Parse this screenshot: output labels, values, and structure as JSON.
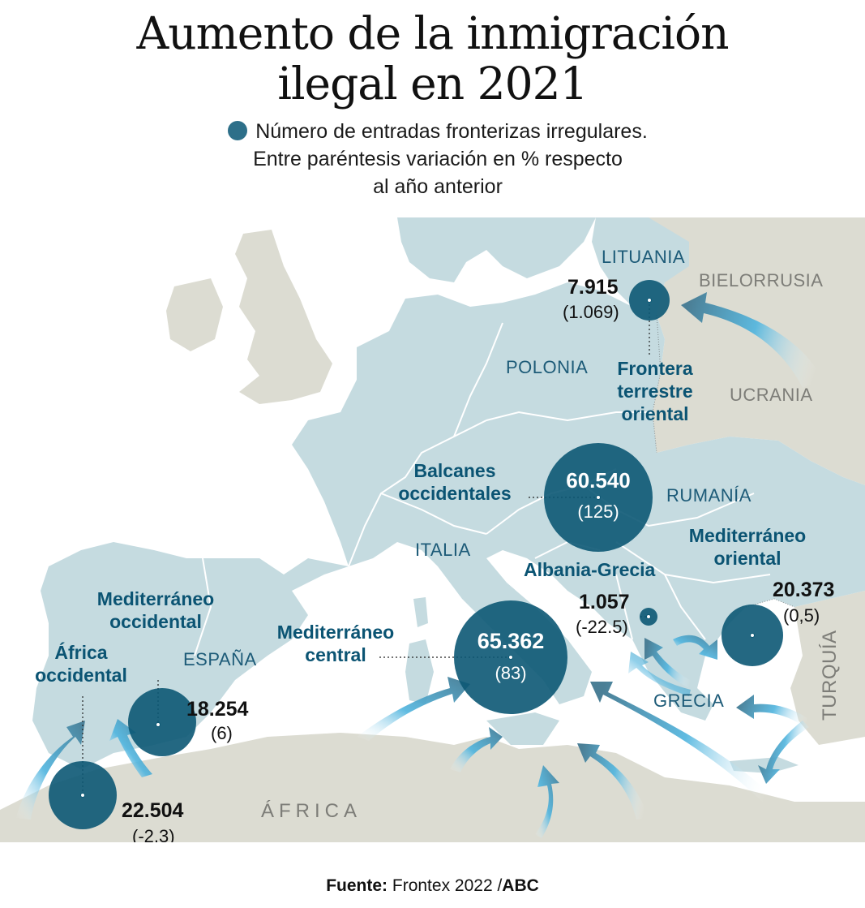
{
  "title_line1": "Aumento de la inmigración",
  "title_line2": "ilegal en 2021",
  "legend_line1": "Número de entradas fronterizas irregulares.",
  "legend_line2": "Entre paréntesis variación en % respecto",
  "legend_line3": "al año anterior",
  "colors": {
    "sea": "#ffffff",
    "europe": "#c5dbe0",
    "other_land": "#dcdcd2",
    "circle": "#0c5874",
    "route_text": "#0b5473"
  },
  "countries": {
    "lituania": "LITUANIA",
    "bielorrusia": "BIELORRUSIA",
    "polonia": "POLONIA",
    "ucrania": "UCRANIA",
    "rumania": "RUMANÍA",
    "italia": "ITALIA",
    "espana": "ESPAÑA",
    "grecia": "GRECIA",
    "turquia": "TURQUÍA",
    "africa": "ÁFRICA"
  },
  "routes": [
    {
      "id": "frontera-terrestre-oriental",
      "name_lines": [
        "Frontera",
        "terrestre",
        "oriental"
      ],
      "value": 7915,
      "value_label": "7.915",
      "change_label": "(1.069)"
    },
    {
      "id": "balcanes-occidentales",
      "name_lines": [
        "Balcanes",
        "occidentales"
      ],
      "value": 60540,
      "value_label": "60.540",
      "change_label": "(125)"
    },
    {
      "id": "mediterraneo-oriental",
      "name_lines": [
        "Mediterráneo",
        "oriental"
      ],
      "value": 20373,
      "value_label": "20.373",
      "change_label": "(0,5)"
    },
    {
      "id": "albania-grecia",
      "name_lines": [
        "Albania-Grecia"
      ],
      "value": 1057,
      "value_label": "1.057",
      "change_label": "(-22.5)"
    },
    {
      "id": "mediterraneo-central",
      "name_lines": [
        "Mediterráneo",
        "central"
      ],
      "value": 65362,
      "value_label": "65.362",
      "change_label": "(83)"
    },
    {
      "id": "mediterraneo-occidental",
      "name_lines": [
        "Mediterráneo",
        "occidental"
      ],
      "value": 18254,
      "value_label": "18.254",
      "change_label": "(6)"
    },
    {
      "id": "africa-occidental",
      "name_lines": [
        "África",
        "occidental"
      ],
      "value": 22504,
      "value_label": "22.504",
      "change_label": "(-2,3)"
    }
  ],
  "source_label": "Fuente:",
  "source_text": "Frontex 2022 /",
  "source_brand": "ABC"
}
